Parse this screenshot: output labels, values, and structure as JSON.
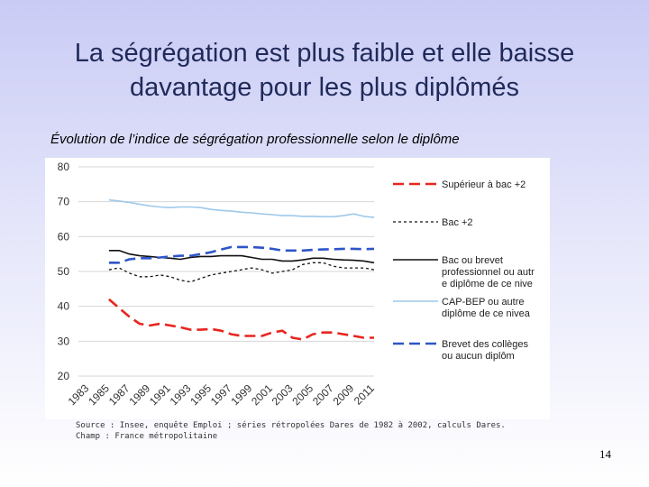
{
  "slide": {
    "title_line1": "La ségrégation est plus faible et elle baisse",
    "title_line2": "davantage pour les plus diplômés",
    "subtitle": "Évolution de l’indice de ségrégation professionnelle selon le diplôme",
    "source_line": "Source : Insee, enquête Emploi ; séries rétropolées Dares de 1982 à 2002, calculs Dares.",
    "champ_line": "Champ : France métropolitaine",
    "page_number": "14"
  },
  "chart_data": {
    "type": "line",
    "title": "",
    "xlabel": "",
    "ylabel": "",
    "ylim": [
      20,
      80
    ],
    "yticks": [
      20,
      30,
      40,
      50,
      60,
      70,
      80
    ],
    "xlim": [
      1983,
      2012
    ],
    "xticks": [
      "1983",
      "1985",
      "1987",
      "1989",
      "1991",
      "1993",
      "1995",
      "1997",
      "1999",
      "2001",
      "2003",
      "2005",
      "2007",
      "2009",
      "2011"
    ],
    "grid": true,
    "legend_position": "right",
    "x": [
      1986,
      1987,
      1988,
      1989,
      1990,
      1991,
      1992,
      1993,
      1994,
      1995,
      1996,
      1997,
      1998,
      1999,
      2000,
      2001,
      2002,
      2003,
      2004,
      2005,
      2006,
      2007,
      2008,
      2009,
      2010,
      2011,
      2012
    ],
    "series": [
      {
        "name": "Supérieur à bac +2",
        "color": "#e8251f",
        "dash": "long",
        "values": [
          42,
          39.5,
          37,
          35,
          34.5,
          35,
          34.5,
          34,
          33.3,
          33.3,
          33.5,
          33,
          32,
          31.5,
          31.5,
          31.5,
          32.5,
          33,
          31,
          30.5,
          32,
          32.5,
          32.5,
          32,
          31.5,
          31,
          31
        ]
      },
      {
        "name": "Bac +2",
        "color": "#111111",
        "dash": "dot",
        "values": [
          50.5,
          51,
          49.5,
          48.5,
          48.5,
          49,
          48.5,
          47.5,
          47,
          48,
          49,
          49.5,
          50,
          50.5,
          51,
          50.5,
          49.5,
          50,
          50.5,
          52,
          52.5,
          52.5,
          51.5,
          51,
          51,
          51,
          50.5
        ]
      },
      {
        "name": "Bac ou brevet professionnel ou autre diplôme de ce niveau",
        "color": "#111111",
        "dash": "solid",
        "values": [
          56,
          56,
          55,
          54.5,
          54.3,
          54,
          53.8,
          53.5,
          54,
          54.3,
          54.3,
          54.5,
          54.5,
          54.5,
          54,
          53.5,
          53.5,
          53,
          53,
          53.3,
          53.8,
          53.8,
          53.5,
          53.3,
          53.2,
          53,
          52.5
        ]
      },
      {
        "name": "CAP-BEP ou autre diplôme de ce niveau",
        "color": "#9ec9ea",
        "dash": "solid",
        "values": [
          70.5,
          70.2,
          69.8,
          69.3,
          68.8,
          68.5,
          68.3,
          68.5,
          68.5,
          68.3,
          67.8,
          67.5,
          67.3,
          67,
          66.8,
          66.5,
          66.3,
          66,
          66,
          65.8,
          65.8,
          65.7,
          65.7,
          66,
          66.5,
          65.8,
          65.5
        ]
      },
      {
        "name": "Brevet des collèges ou aucun diplôme",
        "color": "#2f55c8",
        "dash": "long",
        "values": [
          52.5,
          52.5,
          53.5,
          53.8,
          53.8,
          54,
          54.3,
          54.5,
          54.5,
          55,
          55.5,
          56.3,
          57,
          57,
          57,
          56.8,
          56.5,
          56,
          56,
          56,
          56.2,
          56.3,
          56.4,
          56.5,
          56.5,
          56.4,
          56.5
        ]
      }
    ]
  }
}
